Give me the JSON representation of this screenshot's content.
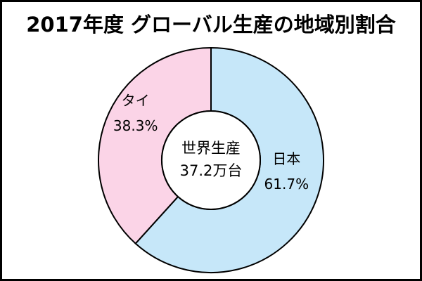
{
  "chart_data": {
    "type": "donut",
    "title": "2017年度 グローバル生産の地域別割合",
    "center_title": "世界生産",
    "center_value": "37.2万台",
    "categories": [
      "日本",
      "タイ"
    ],
    "values": [
      61.7,
      38.3
    ],
    "value_labels": [
      "61.7%",
      "38.3%"
    ],
    "colors": [
      "#c6e7f9",
      "#fbd4e7"
    ]
  }
}
